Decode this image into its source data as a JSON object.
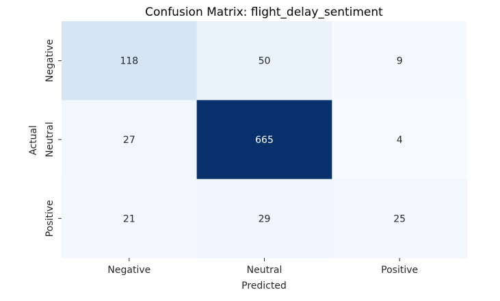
{
  "chart_data": {
    "type": "heatmap",
    "title": "Confusion Matrix: flight_delay_sentiment",
    "xlabel": "Predicted",
    "ylabel": "Actual",
    "x_categories": [
      "Negative",
      "Neutral",
      "Positive"
    ],
    "y_categories": [
      "Negative",
      "Neutral",
      "Positive"
    ],
    "values": [
      [
        118,
        50,
        9
      ],
      [
        27,
        665,
        4
      ],
      [
        21,
        29,
        25
      ]
    ],
    "colormap": "Blues",
    "colorbar": false,
    "annotated": true
  }
}
